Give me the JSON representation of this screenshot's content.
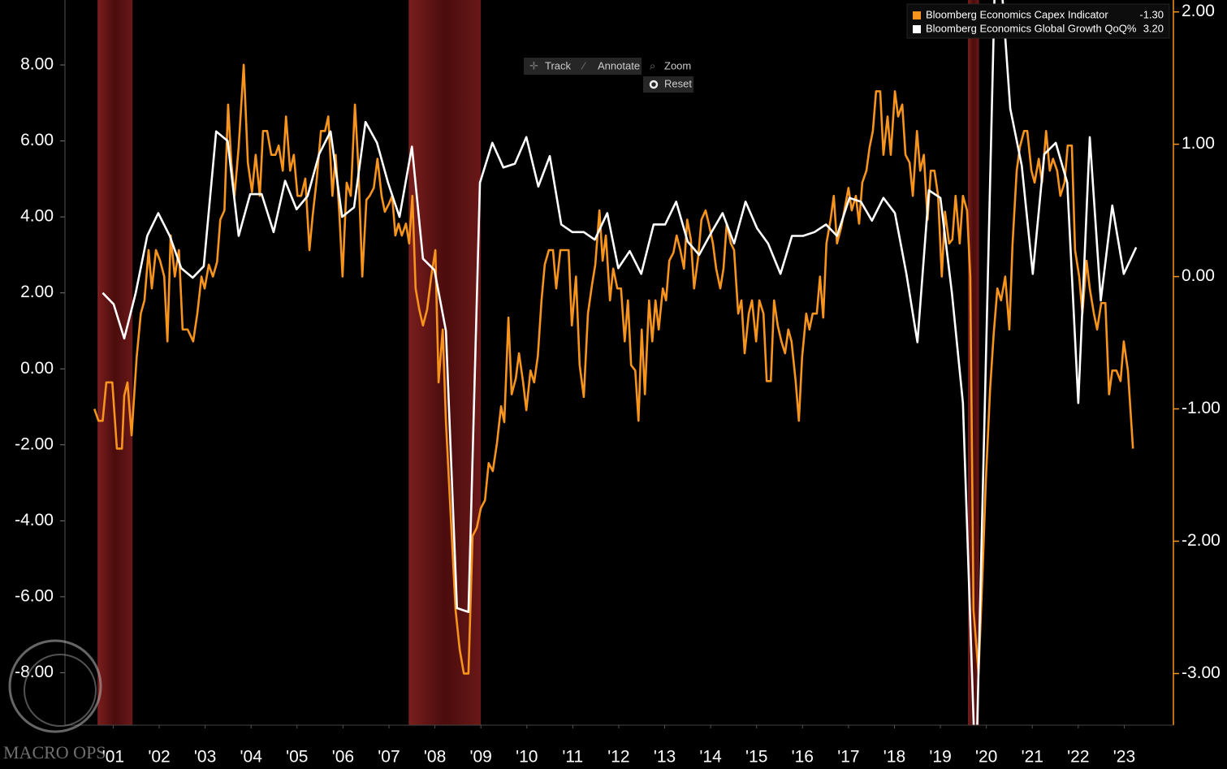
{
  "chart_data": {
    "type": "line",
    "xlim": [
      2000.45,
      2024.57
    ],
    "xticks": [
      {
        "value": 2001.5,
        "label": "'01"
      },
      {
        "value": 2002.5,
        "label": "'02"
      },
      {
        "value": 2003.5,
        "label": "'03"
      },
      {
        "value": 2004.5,
        "label": "'04"
      },
      {
        "value": 2005.5,
        "label": "'05"
      },
      {
        "value": 2006.5,
        "label": "'06"
      },
      {
        "value": 2007.5,
        "label": "'07"
      },
      {
        "value": 2008.5,
        "label": "'08"
      },
      {
        "value": 2009.5,
        "label": "'09"
      },
      {
        "value": 2010.5,
        "label": "'10"
      },
      {
        "value": 2011.5,
        "label": "'11"
      },
      {
        "value": 2012.5,
        "label": "'12"
      },
      {
        "value": 2013.5,
        "label": "'13"
      },
      {
        "value": 2014.5,
        "label": "'14"
      },
      {
        "value": 2015.5,
        "label": "'15"
      },
      {
        "value": 2016.5,
        "label": "'16"
      },
      {
        "value": 2017.5,
        "label": "'17"
      },
      {
        "value": 2018.5,
        "label": "'18"
      },
      {
        "value": 2019.5,
        "label": "'19"
      },
      {
        "value": 2020.5,
        "label": "'20"
      },
      {
        "value": 2021.5,
        "label": "'21"
      },
      {
        "value": 2022.5,
        "label": "'22"
      },
      {
        "value": 2023.5,
        "label": "'23"
      }
    ],
    "ylim": [
      -9.38,
      9.71
    ],
    "yticks": [
      {
        "value": 8,
        "label": "8.00"
      },
      {
        "value": 6,
        "label": "6.00"
      },
      {
        "value": 4,
        "label": "4.00"
      },
      {
        "value": 2,
        "label": "2.00"
      },
      {
        "value": 0,
        "label": "0.00"
      },
      {
        "value": -2,
        "label": "-2.00"
      },
      {
        "value": -4,
        "label": "-4.00"
      },
      {
        "value": -6,
        "label": "-6.00"
      },
      {
        "value": -8,
        "label": "-8.00"
      }
    ],
    "y2lim": [
      -3.39,
      2.09
    ],
    "y2ticks": [
      {
        "value": 2,
        "label": "2.00"
      },
      {
        "value": 1,
        "label": "1.00"
      },
      {
        "value": 0,
        "label": "0.00"
      },
      {
        "value": -1,
        "label": "-1.00"
      },
      {
        "value": -2,
        "label": "-2.00"
      },
      {
        "value": -3,
        "label": "-3.00"
      }
    ],
    "y2_color": "#f7941d",
    "shaded_regions": [
      [
        2001.16,
        2001.92
      ],
      [
        2007.93,
        2009.5
      ],
      [
        2020.1,
        2020.34
      ]
    ],
    "series": [
      {
        "name": "Bloomberg Economics Capex Indicator",
        "color": "#f7941d",
        "axis": "y2",
        "last_value_label": "-1.30",
        "x": [
          2001.09,
          2001.18,
          2001.27,
          2001.35,
          2001.48,
          2001.58,
          2001.69,
          2001.74,
          2001.81,
          2001.9,
          2002.01,
          2002.1,
          2002.18,
          2002.27,
          2002.34,
          2002.43,
          2002.52,
          2002.61,
          2002.68,
          2002.75,
          2002.84,
          2002.93,
          2003.01,
          2003.12,
          2003.24,
          2003.33,
          2003.42,
          2003.49,
          2003.58,
          2003.67,
          2003.76,
          2003.83,
          2003.92,
          2004.0,
          2004.07,
          2004.14,
          2004.23,
          2004.34,
          2004.43,
          2004.52,
          2004.6,
          2004.69,
          2004.76,
          2004.85,
          2004.94,
          2005.03,
          2005.1,
          2005.19,
          2005.26,
          2005.35,
          2005.43,
          2005.51,
          2005.59,
          2005.68,
          2005.77,
          2005.84,
          2005.93,
          2006.02,
          2006.11,
          2006.18,
          2006.27,
          2006.34,
          2006.42,
          2006.49,
          2006.58,
          2006.67,
          2006.76,
          2006.83,
          2006.92,
          2007.01,
          2007.08,
          2007.17,
          2007.25,
          2007.34,
          2007.41,
          2007.5,
          2007.57,
          2007.64,
          2007.71,
          2007.78,
          2007.87,
          2007.94,
          2008.01,
          2008.08,
          2008.16,
          2008.24,
          2008.33,
          2008.42,
          2008.51,
          2008.58,
          2008.67,
          2008.74,
          2008.84,
          2008.95,
          2009.04,
          2009.13,
          2009.23,
          2009.32,
          2009.41,
          2009.5,
          2009.59,
          2009.67,
          2009.76,
          2009.85,
          2009.94,
          2010.01,
          2010.1,
          2010.17,
          2010.26,
          2010.33,
          2010.42,
          2010.49,
          2010.58,
          2010.66,
          2010.74,
          2010.82,
          2010.89,
          2010.98,
          2011.07,
          2011.14,
          2011.23,
          2011.32,
          2011.41,
          2011.48,
          2011.57,
          2011.65,
          2011.74,
          2011.83,
          2011.92,
          2011.99,
          2012.08,
          2012.15,
          2012.22,
          2012.31,
          2012.38,
          2012.47,
          2012.55,
          2012.63,
          2012.7,
          2012.77,
          2012.86,
          2012.93,
          2013.0,
          2013.07,
          2013.16,
          2013.23,
          2013.3,
          2013.37,
          2013.46,
          2013.53,
          2013.6,
          2013.69,
          2013.76,
          2013.84,
          2013.92,
          2013.99,
          2014.07,
          2014.14,
          2014.23,
          2014.3,
          2014.39,
          2014.46,
          2014.55,
          2014.62,
          2014.71,
          2014.78,
          2014.85,
          2014.94,
          2015.01,
          2015.1,
          2015.17,
          2015.24,
          2015.33,
          2015.4,
          2015.49,
          2015.56,
          2015.65,
          2015.72,
          2015.81,
          2015.88,
          2015.96,
          2016.04,
          2016.12,
          2016.19,
          2016.26,
          2016.35,
          2016.42,
          2016.49,
          2016.58,
          2016.65,
          2016.72,
          2016.81,
          2016.88,
          2016.95,
          2017.02,
          2017.11,
          2017.18,
          2017.25,
          2017.34,
          2017.41,
          2017.5,
          2017.57,
          2017.66,
          2017.73,
          2017.8,
          2017.89,
          2017.96,
          2018.03,
          2018.1,
          2018.19,
          2018.26,
          2018.35,
          2018.42,
          2018.51,
          2018.58,
          2018.67,
          2018.74,
          2018.83,
          2018.9,
          2018.99,
          2019.06,
          2019.14,
          2019.22,
          2019.29,
          2019.37,
          2019.45,
          2019.53,
          2019.6,
          2019.69,
          2019.76,
          2019.83,
          2019.92,
          2019.99,
          2020.08,
          2020.15,
          2020.22,
          2020.33,
          2020.42,
          2020.49,
          2020.58,
          2020.66,
          2020.74,
          2020.82,
          2020.91,
          2021.0,
          2021.07,
          2021.16,
          2021.23,
          2021.32,
          2021.39,
          2021.48,
          2021.55,
          2021.64,
          2021.71,
          2021.8,
          2021.88,
          2021.95,
          2022.04,
          2022.11,
          2022.2,
          2022.27,
          2022.36,
          2022.43,
          2022.52,
          2022.59,
          2022.68,
          2022.75,
          2022.84,
          2022.91,
          2023.0,
          2023.09,
          2023.17,
          2023.24,
          2023.33,
          2023.42,
          2023.49,
          2023.58,
          2023.69
        ],
        "values": [
          -1.0,
          -1.09,
          -1.09,
          -0.8,
          -0.8,
          -1.3,
          -1.3,
          -0.9,
          -0.8,
          -1.2,
          -0.61,
          -0.28,
          -0.18,
          0.2,
          -0.09,
          0.2,
          0.12,
          0.0,
          -0.49,
          0.31,
          0.0,
          0.2,
          -0.4,
          -0.4,
          -0.49,
          -0.28,
          0.0,
          -0.09,
          0.09,
          0.0,
          0.11,
          0.43,
          0.5,
          1.3,
          0.86,
          0.61,
          0.98,
          1.6,
          0.86,
          0.64,
          0.92,
          0.61,
          1.1,
          1.1,
          0.92,
          0.92,
          0.99,
          0.8,
          1.21,
          0.8,
          0.92,
          0.61,
          0.61,
          0.74,
          0.2,
          0.46,
          0.74,
          1.1,
          1.1,
          1.21,
          0.61,
          0.92,
          0.48,
          0.0,
          0.71,
          0.61,
          1.3,
          0.86,
          0.0,
          0.58,
          0.61,
          0.67,
          0.89,
          0.61,
          0.49,
          0.55,
          0.61,
          0.31,
          0.4,
          0.31,
          0.4,
          0.25,
          0.61,
          -0.09,
          -0.25,
          -0.37,
          -0.25,
          0.0,
          0.2,
          -0.8,
          -0.4,
          -1.1,
          -1.78,
          -2.52,
          -2.82,
          -3.0,
          -3.0,
          -1.96,
          -1.9,
          -1.75,
          -1.69,
          -1.41,
          -1.47,
          -1.26,
          -0.98,
          -1.1,
          -0.31,
          -0.89,
          -0.77,
          -0.58,
          -0.8,
          -1.01,
          -0.71,
          -0.8,
          -0.6,
          -0.18,
          0.09,
          0.2,
          0.2,
          -0.09,
          0.2,
          0.2,
          0.2,
          -0.37,
          0.0,
          -0.67,
          -0.91,
          -0.28,
          -0.06,
          0.09,
          0.5,
          0.12,
          0.31,
          -0.18,
          0.06,
          -0.09,
          -0.09,
          -0.49,
          -0.18,
          -0.67,
          -0.71,
          -1.09,
          -0.4,
          -0.89,
          -0.18,
          -0.49,
          -0.18,
          -0.4,
          -0.09,
          -0.18,
          0.12,
          0.18,
          0.31,
          0.2,
          0.06,
          0.43,
          0.28,
          -0.09,
          0.15,
          0.43,
          0.5,
          0.4,
          0.25,
          0.06,
          -0.09,
          0.06,
          0.4,
          0.25,
          0.2,
          -0.28,
          -0.18,
          -0.58,
          -0.28,
          -0.18,
          -0.49,
          -0.18,
          -0.28,
          -0.79,
          -0.79,
          -0.18,
          -0.37,
          -0.49,
          -0.58,
          -0.4,
          -0.49,
          -0.79,
          -1.09,
          -0.61,
          -0.28,
          -0.4,
          -0.28,
          -0.28,
          0.0,
          -0.31,
          0.25,
          0.43,
          0.61,
          0.25,
          0.37,
          0.5,
          0.67,
          0.5,
          0.61,
          0.4,
          0.71,
          0.8,
          0.98,
          1.1,
          1.4,
          1.4,
          0.92,
          1.21,
          0.92,
          1.4,
          1.21,
          1.3,
          0.92,
          0.86,
          0.61,
          1.1,
          0.8,
          0.92,
          0.43,
          0.8,
          0.8,
          0.61,
          0.0,
          0.49,
          0.25,
          0.28,
          0.61,
          0.25,
          0.61,
          0.5,
          0.0,
          -2.52,
          -3.0,
          -2.21,
          -1.53,
          -0.86,
          -0.43,
          -0.09,
          -0.18,
          0.0,
          -0.4,
          0.25,
          0.8,
          0.98,
          1.1,
          1.1,
          0.8,
          0.71,
          0.89,
          0.71,
          1.1,
          0.8,
          0.89,
          0.8,
          0.61,
          0.71,
          0.99,
          0.99,
          0.2,
          0.0,
          -0.28,
          0.12,
          -0.09,
          -0.28,
          -0.4,
          -0.2,
          -0.2,
          -0.89,
          -0.71,
          -0.71,
          -0.79,
          -0.49,
          -0.71,
          -1.3
        ]
      },
      {
        "name": "Bloomberg Economics Global Growth QoQ%",
        "color": "#ffffff",
        "last_value_label": "3.20",
        "x": [
          2001.27,
          2001.51,
          2001.74,
          2001.99,
          2002.24,
          2002.48,
          2002.73,
          2002.98,
          2003.23,
          2003.47,
          2003.74,
          2003.99,
          2004.23,
          2004.48,
          2004.73,
          2004.99,
          2005.24,
          2005.49,
          2005.73,
          2005.98,
          2006.23,
          2006.48,
          2006.74,
          2006.99,
          2007.24,
          2007.48,
          2007.73,
          2008.0,
          2008.24,
          2008.49,
          2008.74,
          2008.98,
          2009.23,
          2009.48,
          2009.75,
          2009.99,
          2010.24,
          2010.49,
          2010.75,
          2011.0,
          2011.25,
          2011.49,
          2011.74,
          2011.98,
          2012.25,
          2012.49,
          2012.74,
          2012.99,
          2013.26,
          2013.51,
          2013.75,
          2014.0,
          2014.25,
          2014.52,
          2014.76,
          2015.01,
          2015.26,
          2015.51,
          2015.75,
          2016.02,
          2016.27,
          2016.51,
          2016.76,
          2017.01,
          2017.25,
          2017.52,
          2017.77,
          2018.01,
          2018.26,
          2018.51,
          2018.76,
          2019.0,
          2019.25,
          2019.5,
          2019.75,
          2019.99,
          2020.27,
          2020.72,
          2021.02,
          2021.27,
          2021.51,
          2021.76,
          2022.01,
          2022.26,
          2022.5,
          2022.75,
          2022.99,
          2023.24,
          2023.49,
          2023.76
        ],
        "values": [
          2.0,
          1.7,
          0.8,
          2.0,
          3.5,
          4.1,
          3.5,
          2.65,
          2.4,
          2.7,
          6.25,
          6.0,
          3.5,
          4.6,
          4.6,
          3.6,
          4.95,
          4.2,
          4.55,
          5.65,
          6.25,
          4.0,
          4.25,
          6.5,
          5.95,
          4.9,
          4.0,
          5.85,
          2.9,
          2.6,
          1.0,
          -6.3,
          -6.4,
          4.9,
          5.95,
          5.3,
          5.4,
          6.1,
          4.8,
          5.6,
          3.8,
          3.6,
          3.6,
          3.4,
          4.1,
          2.65,
          3.1,
          2.5,
          3.8,
          3.8,
          4.4,
          3.35,
          3.0,
          3.6,
          4.1,
          3.3,
          4.4,
          3.7,
          3.3,
          2.5,
          3.5,
          3.5,
          3.6,
          3.8,
          3.5,
          4.5,
          4.4,
          3.9,
          4.5,
          4.1,
          2.5,
          0.7,
          4.7,
          4.5,
          2.0,
          -0.9,
          -11.0,
          12.0,
          6.85,
          5.35,
          2.5,
          5.65,
          5.95,
          4.9,
          -0.9,
          6.1,
          1.8,
          4.3,
          2.5,
          3.2
        ]
      }
    ]
  },
  "toolbar": {
    "track": "Track",
    "annotate": "Annotate",
    "zoom": "Zoom",
    "reset": "Reset"
  },
  "watermark": "MACRO OPS"
}
